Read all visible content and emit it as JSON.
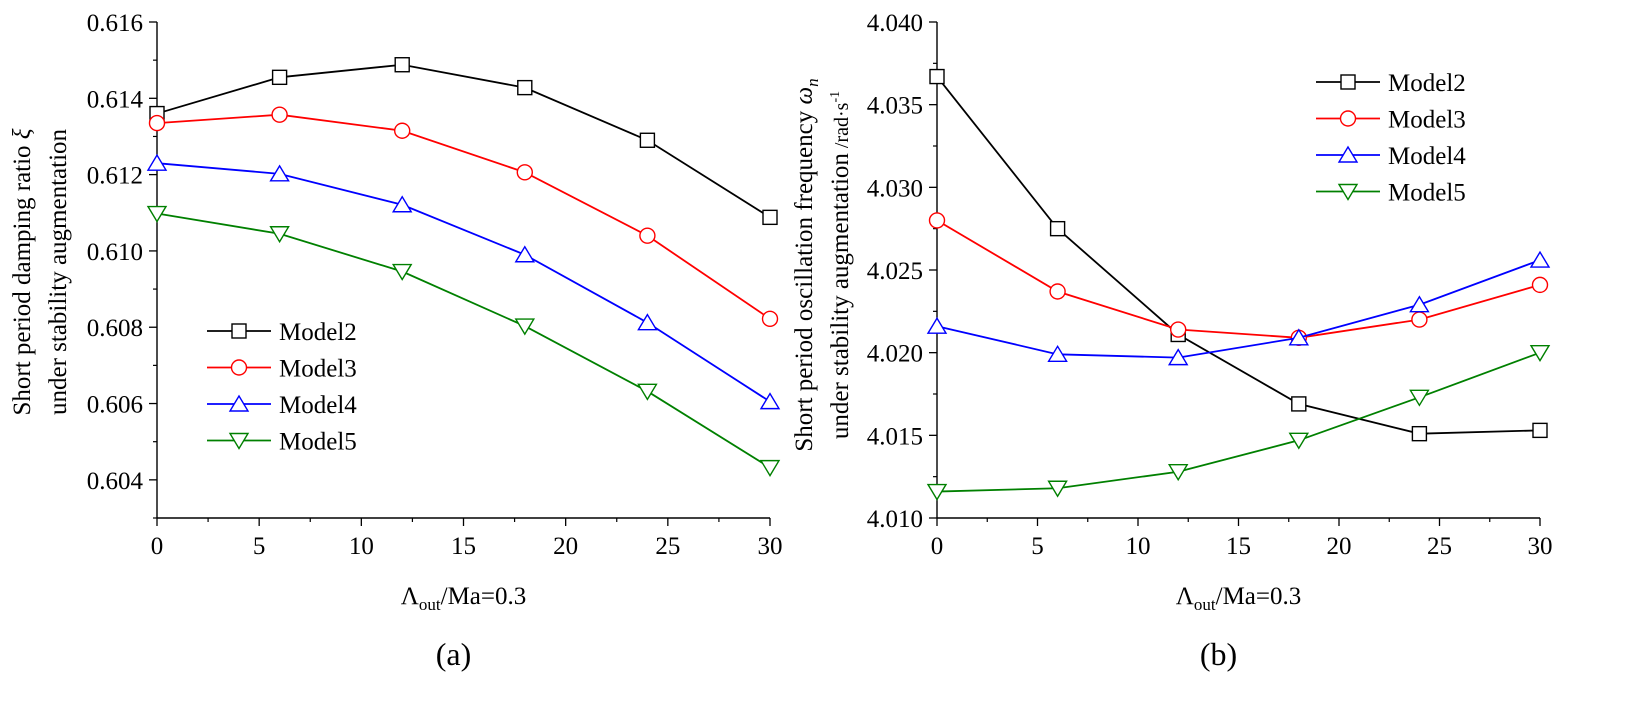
{
  "chart_data": [
    {
      "type": "line",
      "panel_label": "(a)",
      "xlabel": {
        "symbol": "Λ",
        "sub": "out",
        "rest": "/Ma=0.3"
      },
      "ylabel": {
        "line1_text": "Short period damping ratio ",
        "line1_symbol": "ξ",
        "line2": "under stability augmentation"
      },
      "xlim": [
        0,
        30
      ],
      "ylim": [
        0.603,
        0.616
      ],
      "xticks": [
        0,
        5,
        10,
        15,
        20,
        25,
        30
      ],
      "xtick_labels": [
        "0",
        "5",
        "10",
        "15",
        "20",
        "25",
        "30"
      ],
      "yticks": [
        0.604,
        0.606,
        0.608,
        0.61,
        0.612,
        0.614,
        0.616
      ],
      "ytick_labels": [
        "0.604",
        "0.606",
        "0.608",
        "0.610",
        "0.612",
        "0.614",
        "0.616"
      ],
      "legend_position": "lower-left",
      "x": [
        0,
        6,
        12,
        18,
        24,
        30
      ],
      "series": [
        {
          "name": "Model2",
          "color": "#000000",
          "marker": "square",
          "values": [
            0.6136,
            0.61455,
            0.61488,
            0.61428,
            0.6129,
            0.61088
          ]
        },
        {
          "name": "Model3",
          "color": "#ff0000",
          "marker": "circle",
          "values": [
            0.61335,
            0.61357,
            0.61315,
            0.61206,
            0.6104,
            0.60822
          ]
        },
        {
          "name": "Model4",
          "color": "#0000ff",
          "marker": "triangle-up",
          "values": [
            0.6123,
            0.61202,
            0.61121,
            0.6099,
            0.60812,
            0.60605
          ]
        },
        {
          "name": "Model5",
          "color": "#008000",
          "marker": "triangle-down",
          "values": [
            0.61098,
            0.61045,
            0.60946,
            0.60803,
            0.60632,
            0.60432
          ]
        }
      ]
    },
    {
      "type": "line",
      "panel_label": "(b)",
      "xlabel": {
        "symbol": "Λ",
        "sub": "out",
        "rest": "/Ma=0.3"
      },
      "ylabel": {
        "line1_text": "Short period oscillation frequency ",
        "line1_symbol": "ω",
        "line1_sub": "n",
        "line2": "under stability augmentation",
        "line2_unit": " /rad·s",
        "line2_unit_sup": "-1"
      },
      "xlim": [
        0,
        30
      ],
      "ylim": [
        4.01,
        4.04
      ],
      "xticks": [
        0,
        5,
        10,
        15,
        20,
        25,
        30
      ],
      "xtick_labels": [
        "0",
        "5",
        "10",
        "15",
        "20",
        "25",
        "30"
      ],
      "yticks": [
        4.01,
        4.015,
        4.02,
        4.025,
        4.03,
        4.035,
        4.04
      ],
      "ytick_labels": [
        "4.010",
        "4.015",
        "4.020",
        "4.025",
        "4.030",
        "4.035",
        "4.040"
      ],
      "legend_position": "upper-right",
      "x": [
        0,
        6,
        12,
        18,
        24,
        30
      ],
      "series": [
        {
          "name": "Model2",
          "color": "#000000",
          "marker": "square",
          "values": [
            4.0367,
            4.0275,
            4.0211,
            4.0169,
            4.0151,
            4.0153
          ]
        },
        {
          "name": "Model3",
          "color": "#ff0000",
          "marker": "circle",
          "values": [
            4.028,
            4.0237,
            4.0214,
            4.0209,
            4.022,
            4.0241
          ]
        },
        {
          "name": "Model4",
          "color": "#0000ff",
          "marker": "triangle-up",
          "values": [
            4.0216,
            4.0199,
            4.0197,
            4.0209,
            4.0229,
            4.0256
          ]
        },
        {
          "name": "Model5",
          "color": "#008000",
          "marker": "triangle-down",
          "values": [
            4.0116,
            4.0118,
            4.0128,
            4.0147,
            4.0173,
            4.02
          ]
        }
      ]
    }
  ]
}
